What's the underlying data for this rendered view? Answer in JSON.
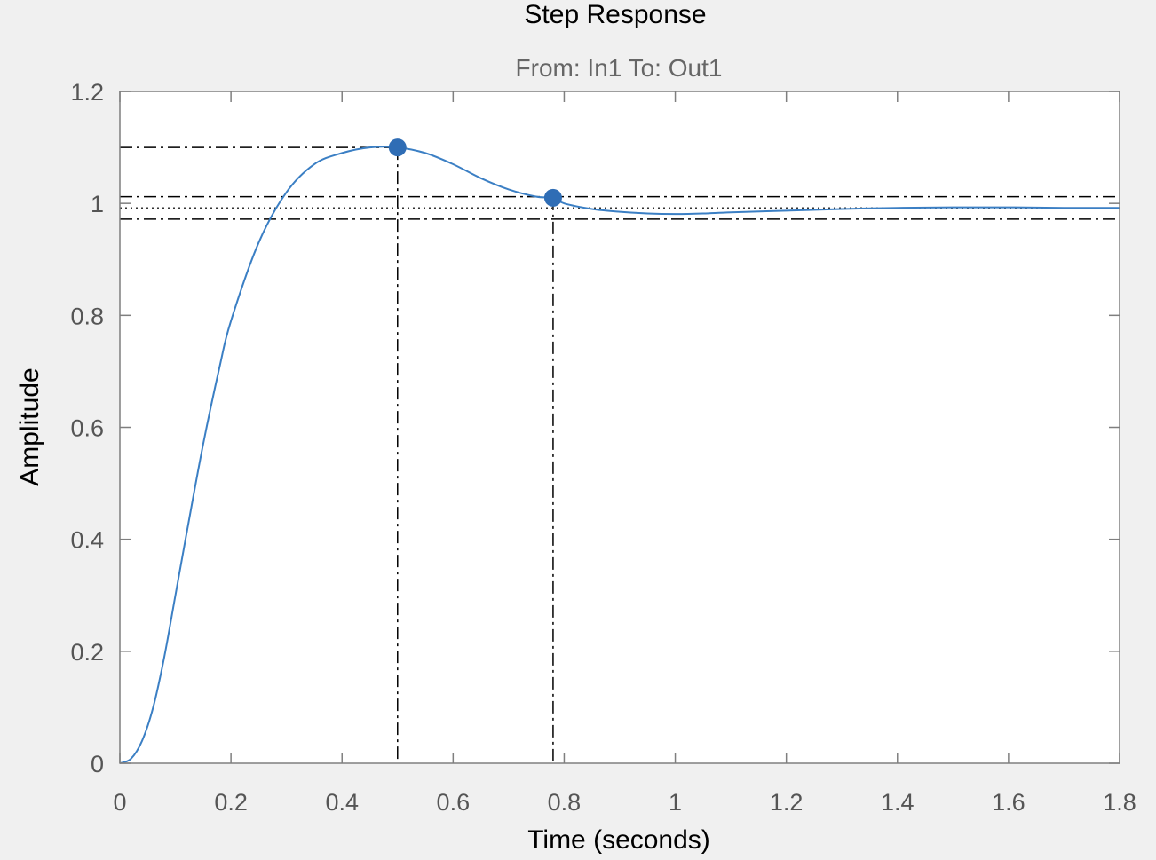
{
  "chart_data": {
    "type": "line",
    "title": "Step Response",
    "subtitle": "From: In1  To: Out1",
    "xlabel": "Time (seconds)",
    "ylabel": "Amplitude",
    "xlim": [
      0,
      1.8
    ],
    "ylim": [
      0,
      1.2
    ],
    "xticks": [
      0,
      0.2,
      0.4,
      0.6,
      0.8,
      1,
      1.2,
      1.4,
      1.6,
      1.8
    ],
    "xtick_labels": [
      "0",
      "0.2",
      "0.4",
      "0.6",
      "0.8",
      "1",
      "1.2",
      "1.4",
      "1.6",
      "1.8"
    ],
    "yticks": [
      0,
      0.2,
      0.4,
      0.6,
      0.8,
      1,
      1.2
    ],
    "ytick_labels": [
      "0",
      "0.2",
      "0.4",
      "0.6",
      "0.8",
      "1",
      "1.2"
    ],
    "grid": false,
    "series": [
      {
        "x": [
          0,
          0.02,
          0.04,
          0.06,
          0.08,
          0.1,
          0.12,
          0.15,
          0.18,
          0.2,
          0.25,
          0.3,
          0.35,
          0.4,
          0.45,
          0.5,
          0.55,
          0.6,
          0.65,
          0.7,
          0.75,
          0.78,
          0.8,
          0.85,
          0.9,
          0.95,
          1.0,
          1.05,
          1.1,
          1.2,
          1.3,
          1.4,
          1.5,
          1.6,
          1.7,
          1.8
        ],
        "y": [
          0,
          0.008,
          0.04,
          0.1,
          0.19,
          0.3,
          0.41,
          0.57,
          0.71,
          0.79,
          0.93,
          1.02,
          1.07,
          1.09,
          1.1,
          1.1,
          1.09,
          1.07,
          1.045,
          1.025,
          1.012,
          1.01,
          1.0,
          0.99,
          0.985,
          0.982,
          0.981,
          0.982,
          0.984,
          0.987,
          0.99,
          0.992,
          0.993,
          0.993,
          0.992,
          0.992
        ]
      }
    ],
    "markers": [
      {
        "label": "peak",
        "x": 0.5,
        "y": 1.1
      },
      {
        "label": "settling",
        "x": 0.78,
        "y": 1.01
      }
    ],
    "reference_lines": {
      "peak_level": 1.1,
      "steady_state": 0.992,
      "settling_upper": 1.012,
      "settling_lower": 0.972
    },
    "colors": {
      "series": "#3b7fc4",
      "marker": "#2f6db5",
      "reference": "#000000",
      "background": "#f0f0f0",
      "plot_area": "#ffffff",
      "axis": "#7f7f7f"
    }
  }
}
